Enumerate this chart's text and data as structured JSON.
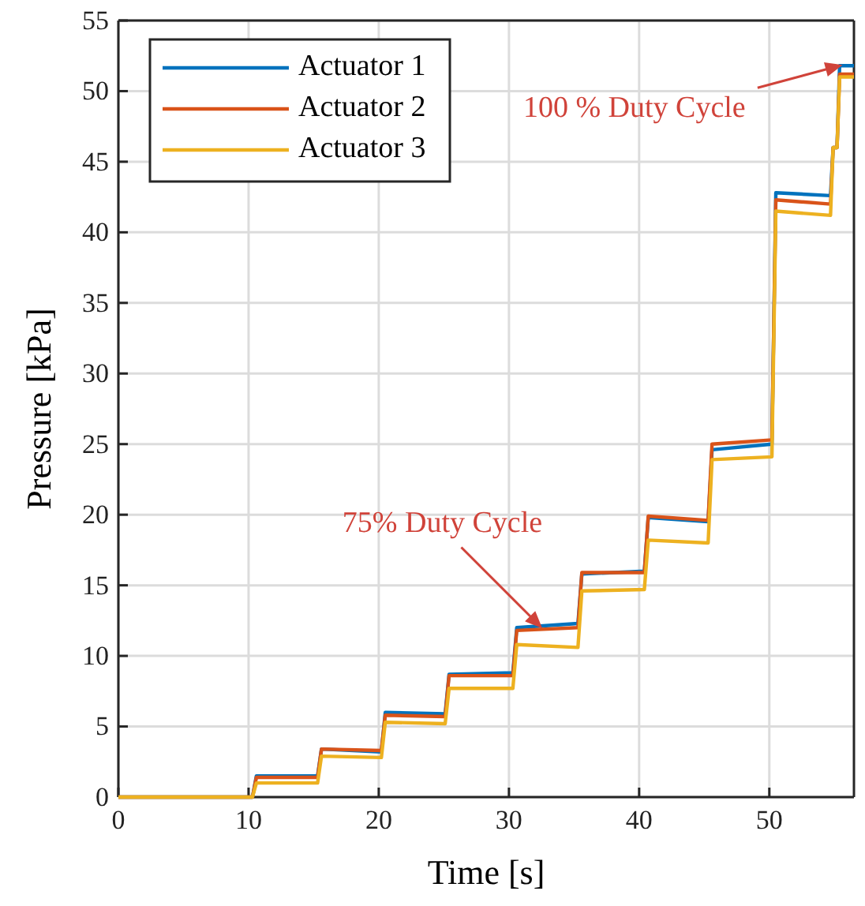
{
  "chart_data": {
    "type": "line",
    "xlabel": "Time [s]",
    "ylabel": "Pressure [kPa]",
    "x": [
      0,
      10.3,
      10.6,
      15.3,
      15.6,
      20.2,
      20.5,
      25.1,
      25.4,
      30.3,
      30.6,
      35.3,
      35.6,
      40.4,
      40.7,
      45.3,
      45.6,
      50.2,
      50.5,
      54.7,
      54.9,
      55.2,
      55.4,
      56.5
    ],
    "series": [
      {
        "name": "Actuator 1",
        "color": "#0072bd",
        "values": [
          0,
          0,
          1.5,
          1.5,
          3.4,
          3.2,
          6.0,
          5.9,
          8.7,
          8.8,
          12.0,
          12.3,
          15.8,
          16.0,
          19.8,
          19.5,
          24.6,
          25.0,
          42.8,
          42.6,
          46,
          46,
          51.8,
          51.8
        ]
      },
      {
        "name": "Actuator 2",
        "color": "#d95319",
        "values": [
          0,
          0,
          1.4,
          1.4,
          3.4,
          3.3,
          5.8,
          5.7,
          8.6,
          8.6,
          11.8,
          12.0,
          15.9,
          15.9,
          19.9,
          19.6,
          25.0,
          25.3,
          42.3,
          42.0,
          46,
          46,
          51.2,
          51.2
        ]
      },
      {
        "name": "Actuator 3",
        "color": "#edb120",
        "values": [
          0,
          0,
          1.0,
          1.0,
          2.9,
          2.8,
          5.3,
          5.2,
          7.7,
          7.7,
          10.8,
          10.6,
          14.6,
          14.7,
          18.2,
          18.0,
          23.9,
          24.1,
          41.5,
          41.2,
          46,
          46,
          51.0,
          51.0
        ]
      }
    ],
    "xlim": [
      0,
      56.5
    ],
    "xticks": [
      0,
      10,
      20,
      30,
      40,
      50
    ],
    "ylim": [
      0,
      55
    ],
    "yticks": [
      0,
      5,
      10,
      15,
      20,
      25,
      30,
      35,
      40,
      45,
      50,
      55
    ],
    "grid": true,
    "legend": "top left",
    "marker": "none",
    "line_style": "solid",
    "annotations": [
      {
        "text": "75% Duty Cycle",
        "x": 32.4,
        "y": 12.1
      },
      {
        "text": "100 % Duty Cycle",
        "x": 55.4,
        "y": 51.8
      }
    ]
  }
}
